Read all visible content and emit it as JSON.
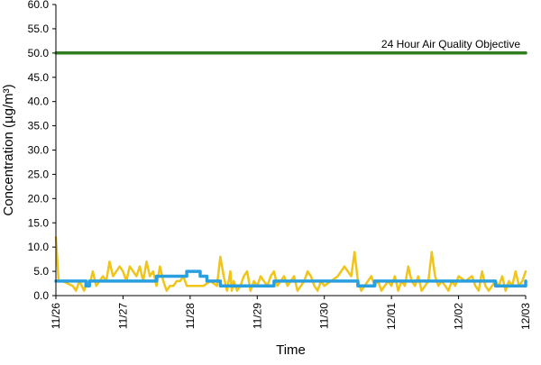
{
  "chart_data": {
    "type": "line",
    "title": "",
    "xlabel": "Time",
    "ylabel": "Concentration (µg/m³)",
    "ylim": [
      0,
      60
    ],
    "y_ticks": [
      "0.0",
      "5.0",
      "10.0",
      "15.0",
      "20.0",
      "25.0",
      "30.0",
      "35.0",
      "40.0",
      "45.0",
      "50.0",
      "55.0",
      "60.0"
    ],
    "x_ticks": [
      "11/26",
      "11/27",
      "11/28",
      "11/29",
      "11/30",
      "12/01",
      "12/02",
      "12/03"
    ],
    "x_unit": "days",
    "grid": false,
    "legend": "none",
    "annotations": [
      {
        "text": "24 Hour Air Quality Objective",
        "y": 50
      }
    ],
    "series": [
      {
        "role": "objective",
        "color": "#2e7d1e",
        "x": [
          0,
          7
        ],
        "values": [
          50,
          50
        ]
      },
      {
        "role": "hourly",
        "color": "#f0c419",
        "x": [
          0,
          0.04,
          0.1,
          0.25,
          0.3,
          0.35,
          0.42,
          0.45,
          0.5,
          0.55,
          0.6,
          0.65,
          0.7,
          0.75,
          0.8,
          0.85,
          0.9,
          0.95,
          1.0,
          1.05,
          1.1,
          1.15,
          1.2,
          1.25,
          1.3,
          1.35,
          1.4,
          1.45,
          1.5,
          1.55,
          1.6,
          1.65,
          1.7,
          1.75,
          1.8,
          1.85,
          1.9,
          1.95,
          2.0,
          2.1,
          2.2,
          2.3,
          2.4,
          2.45,
          2.5,
          2.55,
          2.6,
          2.62,
          2.65,
          2.7,
          2.75,
          2.8,
          2.85,
          2.9,
          2.95,
          3.0,
          3.05,
          3.1,
          3.15,
          3.2,
          3.25,
          3.3,
          3.35,
          3.4,
          3.45,
          3.5,
          3.55,
          3.6,
          3.65,
          3.7,
          3.75,
          3.8,
          3.85,
          3.9,
          3.95,
          4.0,
          4.1,
          4.2,
          4.3,
          4.4,
          4.45,
          4.5,
          4.55,
          4.6,
          4.65,
          4.7,
          4.75,
          4.8,
          4.85,
          4.9,
          4.95,
          5.0,
          5.05,
          5.1,
          5.15,
          5.2,
          5.25,
          5.3,
          5.35,
          5.4,
          5.45,
          5.5,
          5.55,
          5.6,
          5.65,
          5.7,
          5.75,
          5.8,
          5.85,
          5.9,
          5.95,
          6.0,
          6.1,
          6.2,
          6.25,
          6.3,
          6.35,
          6.4,
          6.45,
          6.5,
          6.55,
          6.6,
          6.65,
          6.7,
          6.75,
          6.8,
          6.85,
          6.9,
          6.95,
          7.0
        ],
        "values": [
          12,
          3,
          3,
          2,
          1,
          3,
          1,
          3,
          2,
          5,
          2,
          3,
          4,
          3,
          7,
          4,
          5,
          6,
          5,
          3,
          6,
          5,
          4,
          6,
          3,
          7,
          4,
          5,
          2,
          6,
          3,
          1,
          2,
          2,
          3,
          3,
          4,
          2,
          2,
          2,
          2,
          3,
          2,
          8,
          4,
          1,
          5,
          1,
          3,
          1,
          2,
          4,
          5,
          1,
          3,
          2,
          4,
          3,
          2,
          4,
          5,
          2,
          3,
          4,
          2,
          3,
          4,
          1,
          2,
          3,
          5,
          4,
          2,
          1,
          3,
          2,
          3,
          4,
          6,
          4,
          9,
          3,
          1,
          2,
          3,
          4,
          2,
          3,
          1,
          2,
          3,
          2,
          4,
          1,
          3,
          2,
          6,
          3,
          2,
          4,
          1,
          2,
          3,
          9,
          4,
          2,
          3,
          2,
          1,
          3,
          2,
          4,
          3,
          4,
          2,
          1,
          5,
          2,
          1,
          2,
          3,
          2,
          4,
          1,
          3,
          2,
          5,
          2,
          3,
          5
        ]
      },
      {
        "role": "24h-average",
        "color": "#2a9fe0",
        "step": true,
        "x": [
          0,
          0.45,
          0.5,
          1.05,
          1.5,
          1.95,
          2.15,
          2.25,
          2.45,
          2.8,
          3.25,
          4.1,
          4.5,
          4.75,
          6.45,
          6.55,
          7.0
        ],
        "values": [
          3,
          2,
          3,
          3,
          4,
          5,
          4,
          3,
          2,
          2,
          3,
          3,
          2,
          3,
          3,
          2,
          3
        ]
      }
    ]
  }
}
